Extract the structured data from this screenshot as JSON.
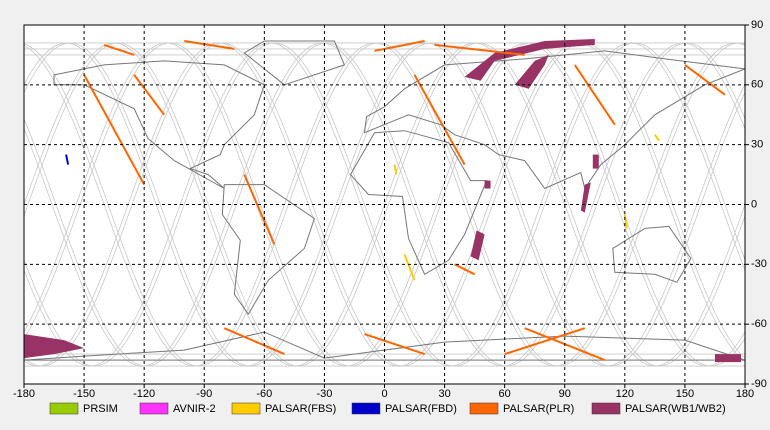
{
  "chart_data": {
    "type": "map",
    "xlim": [
      -180,
      180
    ],
    "ylim": [
      -90,
      90
    ],
    "xticks": [
      -180,
      -150,
      -120,
      -90,
      -60,
      -30,
      0,
      30,
      60,
      90,
      120,
      150,
      180
    ],
    "yticks": [
      -90,
      -60,
      -30,
      0,
      30,
      60,
      90
    ],
    "grid": true,
    "series": [
      {
        "name": "PRSIM",
        "color": "#99cc00"
      },
      {
        "name": "AVNIR-2",
        "color": "#ff33ff"
      },
      {
        "name": "PALSAR(FBS)",
        "color": "#ffcc00"
      },
      {
        "name": "PALSAR(FBD)",
        "color": "#0000cc"
      },
      {
        "name": "PALSAR(PLR)",
        "color": "#ff6600"
      },
      {
        "name": "PALSAR(WB1/WB2)",
        "color": "#993366"
      }
    ]
  }
}
